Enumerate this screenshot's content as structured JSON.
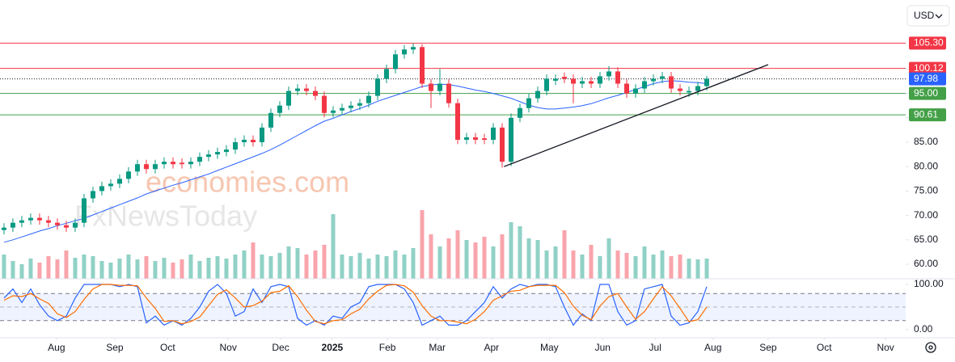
{
  "chart_data": [
    {
      "type": "candlestick",
      "currency": "USD",
      "watermark": [
        "economies.com",
        "FxNewsToday"
      ],
      "up_color": "#089981",
      "down_color": "#f23645",
      "x": [
        0,
        1,
        2,
        3,
        4,
        5,
        6,
        7,
        8,
        9,
        10,
        11,
        12,
        13,
        14,
        15,
        16,
        17,
        18,
        19,
        20,
        21,
        22,
        23,
        24,
        25,
        26,
        27,
        28,
        29,
        30,
        31,
        32,
        33,
        34,
        35,
        36,
        37,
        38,
        39,
        40,
        41,
        42,
        43,
        44,
        45,
        46,
        47,
        48,
        49,
        50,
        51,
        52,
        53,
        54,
        55,
        56,
        57,
        58,
        59,
        60,
        61,
        62,
        63,
        64,
        65,
        66,
        67,
        68,
        69,
        70,
        71,
        72,
        73,
        74,
        75,
        76,
        77,
        78,
        79
      ],
      "open": [
        67,
        67.5,
        68.5,
        69,
        69.5,
        69,
        68.5,
        68,
        67.5,
        68.5,
        73.5,
        75,
        76,
        76.5,
        77.5,
        79,
        80.5,
        79.5,
        80.5,
        81,
        80.8,
        80.5,
        81,
        82,
        82.5,
        83,
        83.5,
        85,
        85.5,
        85,
        88,
        91,
        92.5,
        95.5,
        96,
        95.5,
        94.5,
        91,
        91.5,
        92,
        92.5,
        93,
        94.5,
        98,
        100,
        103,
        104,
        104.5,
        97,
        95.5,
        97,
        93,
        85.5,
        86,
        85.8,
        85.5,
        88,
        81,
        90,
        92,
        94,
        95.5,
        97.6,
        98.4,
        98,
        97,
        97.5,
        97,
        98.5,
        99.5,
        97,
        95,
        96,
        97.5,
        98,
        98.5,
        96,
        95.2,
        95.5,
        96.5
      ],
      "high": [
        68.4,
        69.4,
        69.9,
        70.4,
        70.4,
        69.9,
        69.4,
        68.9,
        69.4,
        74.4,
        75.9,
        76.9,
        77.4,
        78.4,
        79.9,
        81.4,
        81.4,
        81.4,
        81.9,
        81.9,
        81.7,
        81.9,
        82.9,
        83.4,
        83.9,
        84.4,
        85.9,
        86.4,
        86.4,
        88.9,
        91.9,
        93.4,
        96.4,
        96.9,
        96.9,
        96.4,
        95.4,
        92.4,
        92.9,
        93.4,
        93.9,
        95.4,
        98.9,
        100.9,
        103.9,
        104.9,
        105.3,
        105.1,
        97.9,
        100,
        97.9,
        93.9,
        86.9,
        86.9,
        86.7,
        88.9,
        88.9,
        90.9,
        92.9,
        94.9,
        96.4,
        98.9,
        98.9,
        99.3,
        98.9,
        98.4,
        98.4,
        99.4,
        100.6,
        100.4,
        97.9,
        96.9,
        98.4,
        98.9,
        99.4,
        99.4,
        96.9,
        96.4,
        97.4,
        98.6
      ],
      "low": [
        66.1,
        66.6,
        67.6,
        68.1,
        68.1,
        67.6,
        67.1,
        66.6,
        66.6,
        67.6,
        72.6,
        74.1,
        75.1,
        75.6,
        76.6,
        78.1,
        78.6,
        78.6,
        79.6,
        79.6,
        79.6,
        79.6,
        80.1,
        81.1,
        81.6,
        82.1,
        82.6,
        84.1,
        84.1,
        84.1,
        87.1,
        90.1,
        91.6,
        94.6,
        94.6,
        93.6,
        90.1,
        90.1,
        90.6,
        91.1,
        91.6,
        92.1,
        93.6,
        97.1,
        99.1,
        102.1,
        103.1,
        96.1,
        92,
        94.6,
        92.1,
        84.6,
        84.6,
        84.6,
        84.6,
        84.6,
        79.8,
        80.1,
        89.1,
        91.1,
        93.1,
        94.6,
        96.7,
        97.1,
        93,
        96.1,
        96.1,
        96.1,
        97.6,
        96.1,
        94.1,
        94.1,
        95.1,
        96.6,
        97.1,
        95.1,
        94.6,
        94.3,
        94.6,
        95.6
      ],
      "close": [
        67.5,
        68.5,
        69,
        69.5,
        69,
        68.5,
        68,
        67.5,
        68.5,
        73.5,
        75,
        76,
        76.5,
        77.5,
        79,
        80.5,
        79.5,
        80.5,
        81,
        80.5,
        80.5,
        81,
        82,
        82.5,
        83,
        83.5,
        85,
        85.5,
        85,
        88,
        91,
        92.5,
        95.5,
        96,
        95.5,
        94.5,
        91,
        91.5,
        92,
        92.5,
        93,
        94.5,
        98,
        100,
        103,
        104,
        104.5,
        97,
        95.5,
        97,
        93,
        85.5,
        86,
        85.5,
        85.5,
        88,
        81,
        90,
        92,
        94,
        95.5,
        98,
        98,
        98,
        97,
        97.5,
        97,
        98.5,
        99.5,
        97,
        95,
        96,
        97.5,
        98,
        98.5,
        96,
        95.5,
        95.5,
        96.5,
        98
      ],
      "ma": {
        "color": "#2962ff",
        "values": [
          64.5,
          65,
          65.6,
          66.2,
          66.8,
          67.3,
          67.9,
          68.4,
          68.9,
          69.4,
          70.1,
          70.8,
          71.5,
          72.2,
          72.9,
          73.6,
          74.4,
          75,
          75.6,
          76.2,
          76.7,
          77.3,
          77.9,
          78.5,
          79.2,
          79.9,
          80.6,
          81.3,
          82,
          82.7,
          83.5,
          84.4,
          85.4,
          86.4,
          87.4,
          88.4,
          89.3,
          89.9,
          90.6,
          91.3,
          91.9,
          92.6,
          93.4,
          94,
          94.6,
          95.2,
          95.8,
          96.4,
          96.7,
          96.9,
          96.8,
          96.5,
          96.1,
          95.7,
          95.4,
          95,
          94.5,
          94,
          93.3,
          92.6,
          92.1,
          91.8,
          91.8,
          92,
          92.2,
          92.5,
          92.9,
          93.5,
          94.1,
          94.6,
          95.2,
          95.8,
          96.4,
          97,
          97.4,
          97.6,
          97.5,
          97.3,
          97.2,
          97
        ]
      },
      "volume": {
        "ylim": [
          0,
          100
        ],
        "values": [
          30,
          22,
          18,
          25,
          20,
          28,
          24,
          35,
          26,
          30,
          28,
          22,
          20,
          25,
          30,
          24,
          28,
          22,
          26,
          20,
          24,
          30,
          22,
          26,
          28,
          25,
          30,
          35,
          45,
          30,
          28,
          32,
          40,
          38,
          30,
          35,
          42,
          80,
          30,
          28,
          32,
          25,
          30,
          28,
          35,
          30,
          38,
          85,
          55,
          40,
          50,
          60,
          48,
          45,
          52,
          40,
          55,
          70,
          65,
          50,
          48,
          35,
          40,
          60,
          35,
          30,
          42,
          28,
          50,
          35,
          32,
          28,
          40,
          30,
          35,
          28,
          30,
          25,
          24,
          25
        ]
      },
      "levels": [
        {
          "value": 105.3,
          "label": "105.30",
          "color": "#f23645",
          "style": "solid"
        },
        {
          "value": 100.12,
          "label": "100.12",
          "color": "#f23645",
          "style": "solid"
        },
        {
          "value": 97.98,
          "label": "97.98",
          "color": "#2962ff",
          "style": "dotted"
        },
        {
          "value": 95,
          "label": "95.00",
          "color": "#43a047",
          "style": "solid"
        },
        {
          "value": 90.61,
          "label": "90.61",
          "color": "#43a047",
          "style": "solid"
        }
      ],
      "trendline": {
        "x": [
          56.2,
          85.9
        ],
        "y": [
          80,
          100.9
        ],
        "color": "#131722"
      },
      "xlim": [
        -0.45,
        101.36
      ],
      "ylim": [
        57.02,
        114.14
      ],
      "yticks": [
        {
          "value": 60,
          "label": "60.00"
        },
        {
          "value": 65,
          "label": "65.00"
        },
        {
          "value": 70,
          "label": "70.00"
        },
        {
          "value": 75,
          "label": "75.00"
        },
        {
          "value": 80,
          "label": "80.00"
        },
        {
          "value": 85,
          "label": "85.00"
        },
        {
          "value": 90,
          "label": "90.00"
        },
        {
          "value": 95,
          "label": "95.00"
        },
        {
          "value": 100,
          "label": "100.00"
        }
      ]
    },
    {
      "type": "line",
      "x": [
        0,
        1,
        2,
        3,
        4,
        5,
        6,
        7,
        8,
        9,
        10,
        11,
        12,
        13,
        14,
        15,
        16,
        17,
        18,
        19,
        20,
        21,
        22,
        23,
        24,
        25,
        26,
        27,
        28,
        29,
        30,
        31,
        32,
        33,
        34,
        35,
        36,
        37,
        38,
        39,
        40,
        41,
        42,
        43,
        44,
        45,
        46,
        47,
        48,
        49,
        50,
        51,
        52,
        53,
        54,
        55,
        56,
        57,
        58,
        59,
        60,
        61,
        62,
        63,
        64,
        65,
        66,
        67,
        68,
        69,
        70,
        71,
        72,
        73,
        74,
        75,
        76,
        77,
        78,
        79
      ],
      "series": [
        {
          "color": "#2962ff",
          "values": [
            70,
            90,
            60,
            90,
            55,
            30,
            20,
            30,
            70,
            100,
            100,
            100,
            100,
            95,
            100,
            95,
            15,
            30,
            10,
            20,
            10,
            25,
            50,
            85,
            100,
            80,
            30,
            40,
            90,
            60,
            95,
            100,
            95,
            25,
            10,
            20,
            10,
            30,
            25,
            50,
            60,
            95,
            100,
            100,
            100,
            90,
            60,
            10,
            20,
            30,
            10,
            10,
            20,
            40,
            60,
            95,
            70,
            90,
            100,
            95,
            100,
            100,
            95,
            50,
            10,
            35,
            20,
            100,
            100,
            40,
            10,
            20,
            90,
            95,
            100,
            30,
            10,
            15,
            40,
            95
          ]
        },
        {
          "color": "#ff6d00",
          "values": [
            65,
            75,
            73,
            80,
            68,
            58,
            35,
            27,
            40,
            67,
            90,
            100,
            100,
            98,
            98,
            97,
            70,
            47,
            18,
            20,
            13,
            18,
            28,
            53,
            78,
            88,
            70,
            50,
            53,
            63,
            82,
            85,
            97,
            73,
            43,
            18,
            13,
            20,
            22,
            35,
            45,
            68,
            85,
            98,
            100,
            97,
            83,
            53,
            30,
            20,
            20,
            17,
            13,
            23,
            40,
            65,
            75,
            85,
            87,
            95,
            98,
            98,
            98,
            82,
            52,
            32,
            22,
            52,
            73,
            80,
            50,
            23,
            40,
            68,
            95,
            75,
            47,
            18,
            22,
            50
          ]
        }
      ],
      "band": [
        20,
        80
      ],
      "midline": 50,
      "xlim": [
        -0.45,
        101.36
      ],
      "ylim": [
        -17.9,
        112.5
      ],
      "yticks": [
        {
          "value": 100,
          "label": "100.00"
        },
        {
          "value": 0,
          "label": "0.00"
        }
      ],
      "xticks": [
        {
          "value": 5.9,
          "label": "Aug"
        },
        {
          "value": 12.45,
          "label": "Sep"
        },
        {
          "value": 18.4,
          "label": "Oct"
        },
        {
          "value": 25.2,
          "label": "Nov"
        },
        {
          "value": 31.1,
          "label": "Dec"
        },
        {
          "value": 36.9,
          "label": "2025"
        },
        {
          "value": 43.1,
          "label": "Feb"
        },
        {
          "value": 48.7,
          "label": "Mar"
        },
        {
          "value": 54.8,
          "label": "Apr"
        },
        {
          "value": 61.3,
          "label": "May"
        },
        {
          "value": 67.3,
          "label": "Jun"
        },
        {
          "value": 73.2,
          "label": "Jul"
        },
        {
          "value": 79.7,
          "label": "Aug"
        },
        {
          "value": 85.9,
          "label": "Sep"
        },
        {
          "value": 92.2,
          "label": "Oct"
        },
        {
          "value": 99.1,
          "label": "Nov"
        }
      ]
    }
  ]
}
